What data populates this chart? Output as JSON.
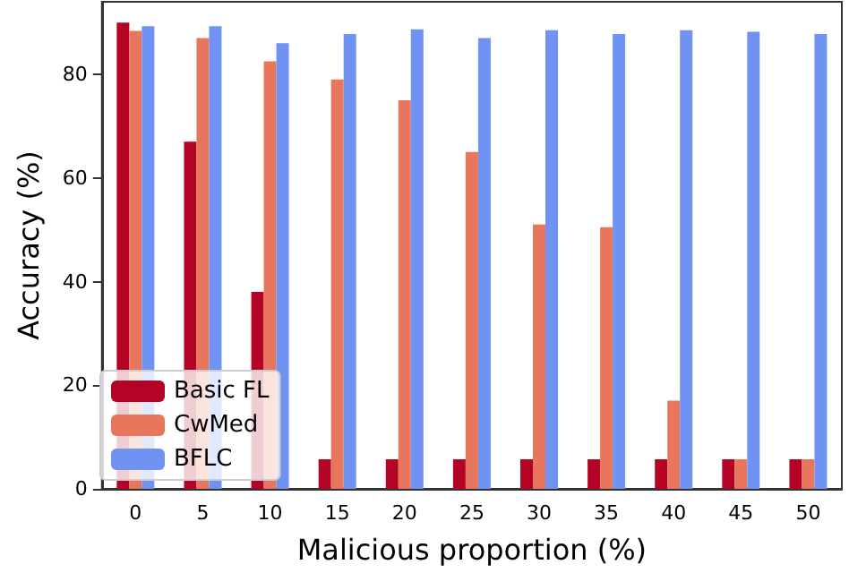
{
  "chart_data": {
    "type": "bar",
    "xlabel": "Malicious proportion (%)",
    "ylabel": "Accuracy (%)",
    "categories": [
      "0",
      "5",
      "10",
      "15",
      "20",
      "25",
      "30",
      "35",
      "40",
      "45",
      "50"
    ],
    "series": [
      {
        "name": "Basic FL",
        "color": "#b40426",
        "values": [
          90,
          67,
          38,
          5.7,
          5.7,
          5.7,
          5.7,
          5.7,
          5.7,
          5.7,
          5.7
        ]
      },
      {
        "name": "CwMed",
        "color": "#e8765d",
        "values": [
          88.4,
          87,
          82.5,
          79,
          75,
          65,
          51,
          50.5,
          17,
          5.7,
          5.7
        ]
      },
      {
        "name": "BFLC",
        "color": "#6f92f3",
        "values": [
          89.3,
          89.3,
          86,
          87.8,
          88.7,
          87,
          88.5,
          87.8,
          88.5,
          88.2,
          87.8
        ]
      }
    ],
    "ylim": [
      0,
      94
    ],
    "yticks": [
      0,
      20,
      40,
      60,
      80
    ],
    "grid": false,
    "legend": "bottom left"
  }
}
